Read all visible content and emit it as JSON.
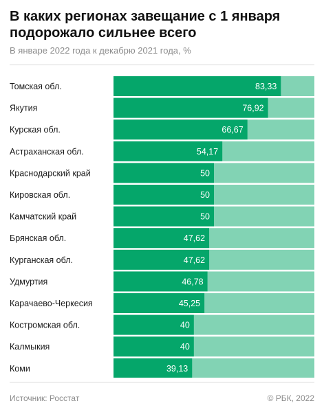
{
  "header": {
    "title": "В каких регионах завещание с 1 января подорожало сильнее всего",
    "subtitle": "В январе 2022 года к декабрю 2021 года, %"
  },
  "footer": {
    "source": "Источник:  Росстат",
    "copyright": "© РБК, 2022"
  },
  "colors": {
    "bar": "#05a66a",
    "track": "#82d3b4",
    "divider": "#d9d9d9",
    "label": "#1a1a1a",
    "value": "#ffffff"
  },
  "chart_data": {
    "type": "bar",
    "orientation": "horizontal",
    "title": "В каких регионах завещание с 1 января подорожало сильнее всего",
    "subtitle": "В январе 2022 года к декабрю 2021 года, %",
    "xlim": [
      0,
      100
    ],
    "grid": false,
    "legend": "none",
    "categories": [
      "Томская обл.",
      "Якутия",
      "Курская обл.",
      "Астраханская обл.",
      "Краснодарский край",
      "Кировская обл.",
      "Камчатский край",
      "Брянская обл.",
      "Курганская обл.",
      "Удмуртия",
      "Карачаево-Черкесия",
      "Костромская обл.",
      "Калмыкия",
      "Коми"
    ],
    "values": [
      83.33,
      76.92,
      66.67,
      54.17,
      50,
      50,
      50,
      47.62,
      47.62,
      46.78,
      45.25,
      40,
      40,
      39.13
    ],
    "value_labels": [
      "83,33",
      "76,92",
      "66,67",
      "54,17",
      "50",
      "50",
      "50",
      "47,62",
      "47,62",
      "46,78",
      "45,25",
      "40",
      "40",
      "39,13"
    ]
  }
}
